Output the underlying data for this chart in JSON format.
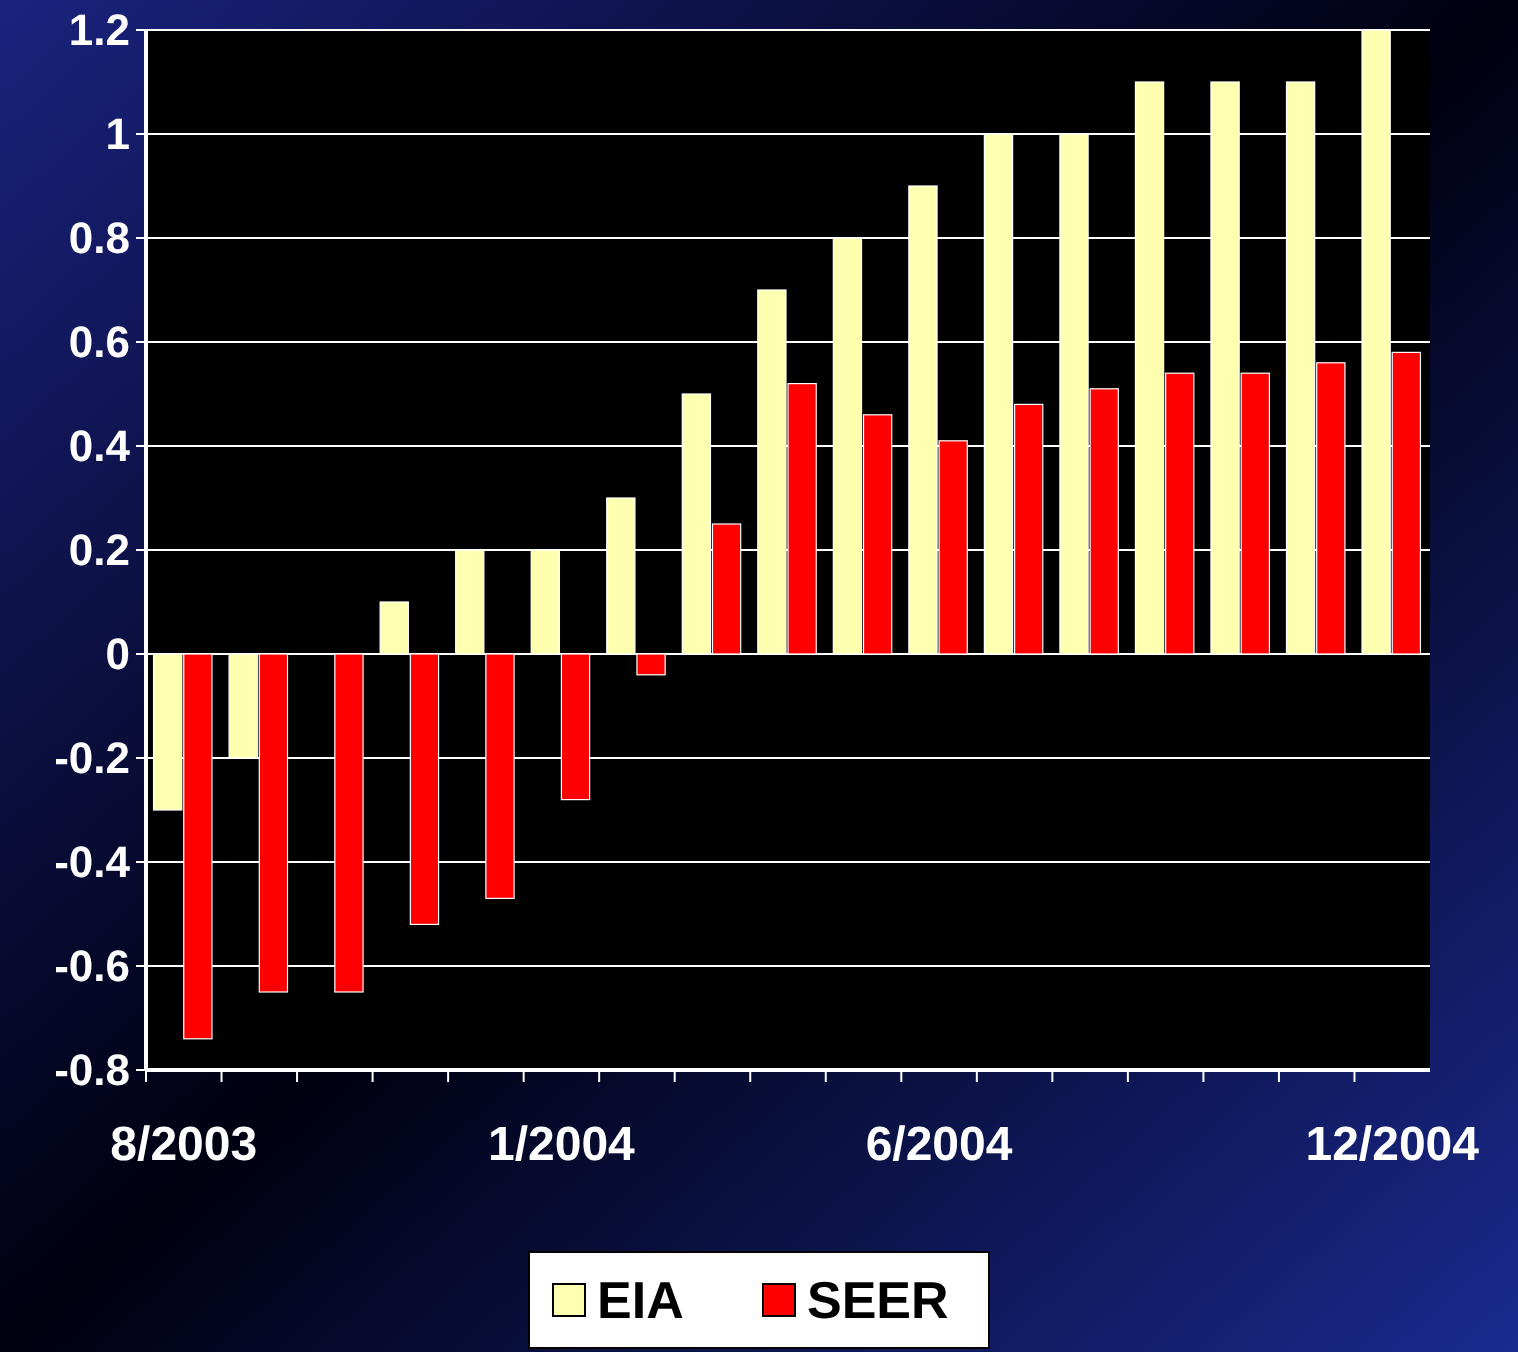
{
  "chart_data": {
    "type": "bar",
    "categories": [
      "8/2003",
      null,
      null,
      null,
      null,
      "1/2004",
      null,
      null,
      null,
      null,
      "6/2004",
      null,
      null,
      null,
      null,
      null,
      "12/2004"
    ],
    "series": [
      {
        "name": "EIA",
        "color": "#ffffb0",
        "values": [
          -0.3,
          -0.2,
          0,
          0.1,
          0.2,
          0.2,
          0.3,
          0.5,
          0.7,
          0.8,
          0.9,
          1.0,
          1.0,
          1.1,
          1.1,
          1.1,
          1.2
        ]
      },
      {
        "name": "SEER",
        "color": "#ff0000",
        "values": [
          -0.74,
          -0.65,
          -0.65,
          -0.52,
          -0.47,
          -0.28,
          -0.04,
          0.25,
          0.52,
          0.46,
          0.41,
          0.48,
          0.51,
          0.54,
          0.54,
          0.56,
          0.58
        ]
      }
    ],
    "ylim": [
      -0.8,
      1.2
    ],
    "yticks": [
      -0.8,
      -0.6,
      -0.4,
      -0.2,
      0,
      0.2,
      0.4,
      0.6,
      0.8,
      1,
      1.2
    ],
    "grid": "y",
    "legend": "bottom"
  }
}
